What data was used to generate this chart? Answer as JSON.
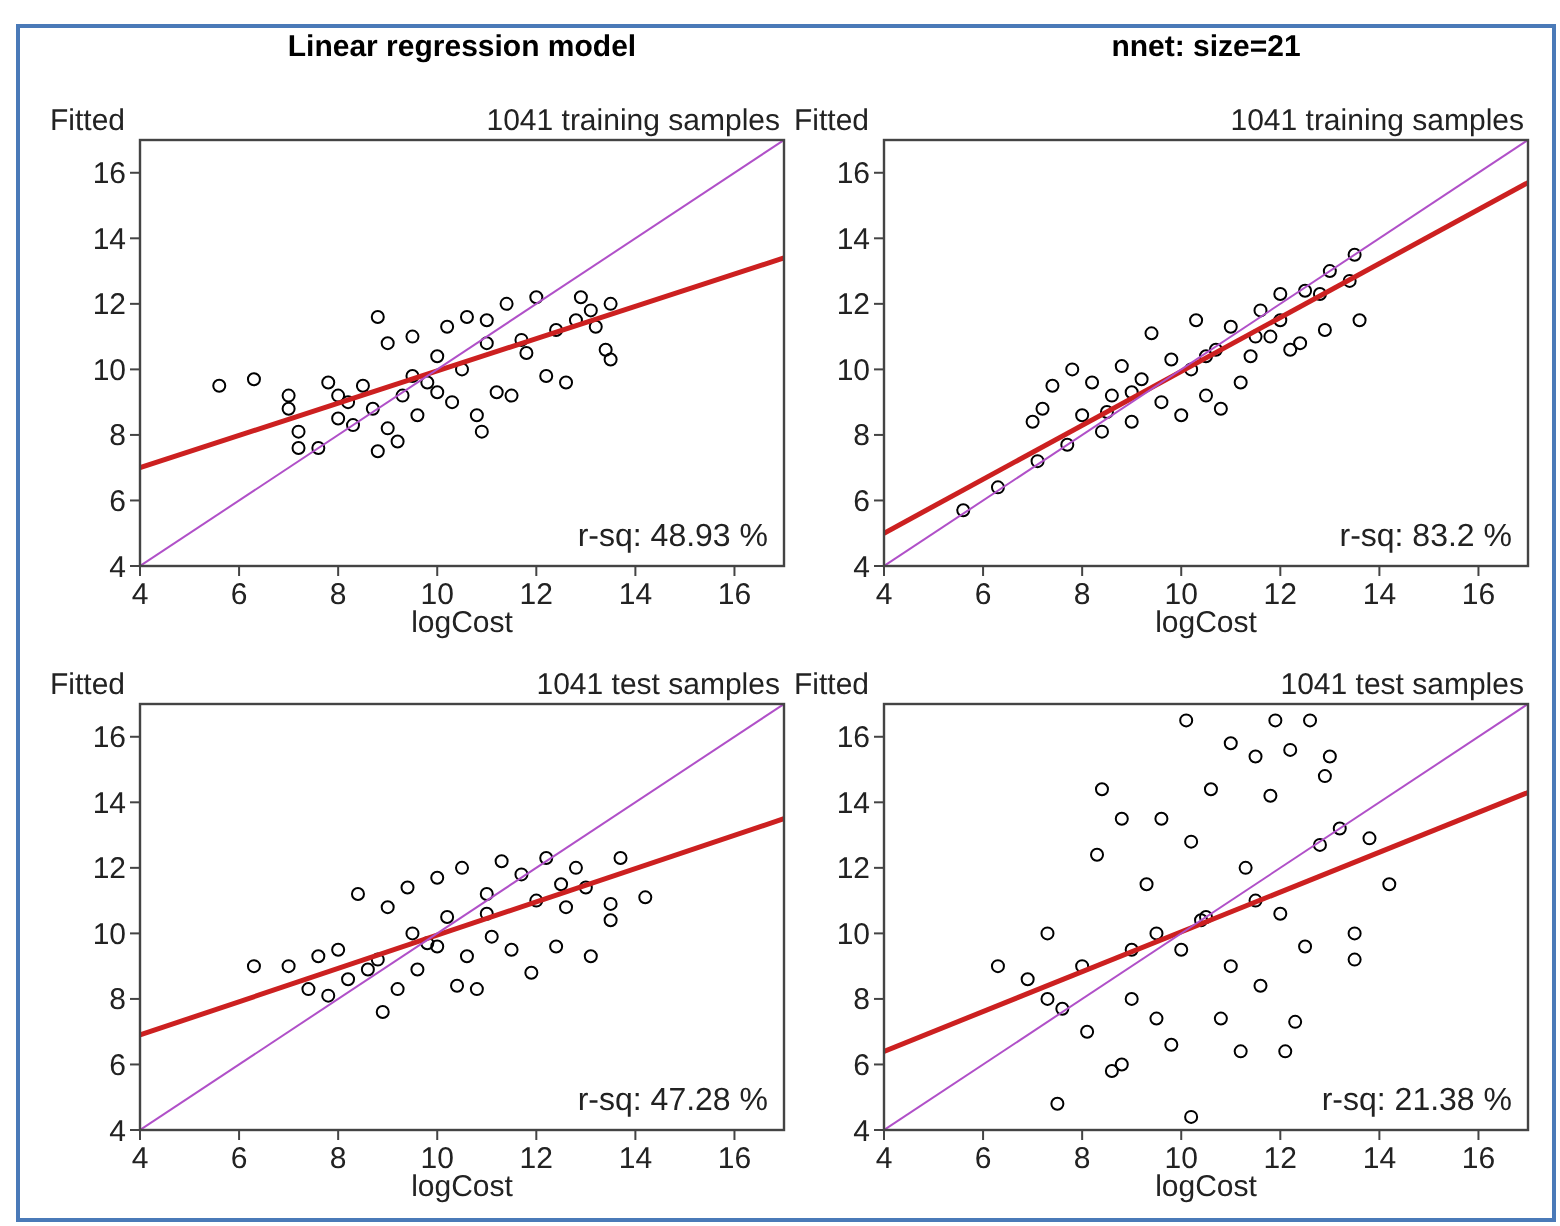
{
  "chart_data": [
    {
      "type": "scatter",
      "title": "Linear regression model",
      "subtitle": "1041 training samples",
      "ylabel": "Fitted",
      "xlabel": "logCost",
      "xlim": [
        4,
        17
      ],
      "ylim": [
        4,
        17
      ],
      "xticks": [
        4,
        6,
        8,
        10,
        12,
        14,
        16
      ],
      "yticks": [
        4,
        6,
        8,
        10,
        12,
        14,
        16
      ],
      "annotations": [
        "r-sq: 48.93 %"
      ],
      "series": [
        {
          "marker": "circle",
          "color": "#000000",
          "x": [
            5.6,
            6.3,
            7.0,
            7.0,
            7.2,
            7.2,
            7.6,
            7.8,
            8.0,
            8.2,
            8.3,
            8.5,
            8.7,
            8.8,
            8.8,
            9.0,
            9.2,
            9.0,
            9.3,
            9.5,
            9.6,
            9.8,
            10.0,
            10.2,
            10.3,
            10.5,
            10.6,
            10.8,
            10.9,
            11.0,
            11.2,
            11.4,
            11.5,
            11.7,
            12.0,
            12.2,
            12.4,
            12.6,
            12.8,
            12.9,
            13.1,
            13.4,
            13.5,
            13.5,
            13.2,
            9.5,
            10.0,
            11.0,
            8.0,
            11.8
          ],
          "values": [
            9.5,
            9.7,
            9.2,
            8.8,
            8.1,
            7.6,
            7.6,
            9.6,
            8.5,
            9.0,
            8.3,
            9.5,
            8.8,
            11.6,
            7.5,
            8.2,
            7.8,
            10.8,
            9.2,
            11.0,
            8.6,
            9.6,
            10.4,
            11.3,
            9.0,
            10.0,
            11.6,
            8.6,
            8.1,
            10.8,
            9.3,
            12.0,
            9.2,
            10.9,
            12.2,
            9.8,
            11.2,
            9.6,
            11.5,
            12.2,
            11.8,
            10.6,
            10.3,
            12.0,
            11.3,
            9.8,
            9.3,
            11.5,
            9.2,
            10.5
          ]
        },
        {
          "type": "line",
          "color": "#cc2020",
          "x": [
            4,
            17
          ],
          "values": [
            7.0,
            13.4
          ]
        },
        {
          "type": "line",
          "color": "#b050c8",
          "x": [
            4,
            17
          ],
          "values": [
            4,
            17
          ]
        }
      ]
    },
    {
      "type": "scatter",
      "title": "nnet: size=21",
      "subtitle": "1041 training samples",
      "ylabel": "Fitted",
      "xlabel": "logCost",
      "xlim": [
        4,
        17
      ],
      "ylim": [
        4,
        17
      ],
      "xticks": [
        4,
        6,
        8,
        10,
        12,
        14,
        16
      ],
      "yticks": [
        4,
        6,
        8,
        10,
        12,
        14,
        16
      ],
      "annotations": [
        "r-sq: 83.2 %"
      ],
      "series": [
        {
          "marker": "circle",
          "color": "#000000",
          "x": [
            5.6,
            6.3,
            7.1,
            7.0,
            7.2,
            7.4,
            7.7,
            7.8,
            8.0,
            8.2,
            8.4,
            8.6,
            8.8,
            9.0,
            9.2,
            9.4,
            9.6,
            9.8,
            10.0,
            10.2,
            10.3,
            10.5,
            10.7,
            10.8,
            11.0,
            11.2,
            11.4,
            11.6,
            11.8,
            12.0,
            12.2,
            12.4,
            12.5,
            12.8,
            12.9,
            13.0,
            13.4,
            13.5,
            13.6,
            12.0,
            9.0,
            10.5,
            11.5,
            8.5
          ],
          "values": [
            5.7,
            6.4,
            7.2,
            8.4,
            8.8,
            9.5,
            7.7,
            10.0,
            8.6,
            9.6,
            8.1,
            9.2,
            10.1,
            8.4,
            9.7,
            11.1,
            9.0,
            10.3,
            8.6,
            10.0,
            11.5,
            9.2,
            10.6,
            8.8,
            11.3,
            9.6,
            10.4,
            11.8,
            11.0,
            12.3,
            10.6,
            10.8,
            12.4,
            12.3,
            11.2,
            13.0,
            12.7,
            13.5,
            11.5,
            11.5,
            9.3,
            10.4,
            11.0,
            8.7
          ]
        },
        {
          "type": "line",
          "color": "#cc2020",
          "x": [
            4,
            17
          ],
          "values": [
            5.0,
            15.7
          ]
        },
        {
          "type": "line",
          "color": "#b050c8",
          "x": [
            4,
            17
          ],
          "values": [
            4,
            17
          ]
        }
      ]
    },
    {
      "type": "scatter",
      "subtitle": "1041 test samples",
      "ylabel": "Fitted",
      "xlabel": "logCost",
      "xlim": [
        4,
        17
      ],
      "ylim": [
        4,
        17
      ],
      "xticks": [
        4,
        6,
        8,
        10,
        12,
        14,
        16
      ],
      "yticks": [
        4,
        6,
        8,
        10,
        12,
        14,
        16
      ],
      "annotations": [
        "r-sq: 47.28 %"
      ],
      "series": [
        {
          "marker": "circle",
          "color": "#000000",
          "x": [
            6.3,
            7.0,
            7.4,
            7.6,
            7.8,
            8.0,
            8.2,
            8.4,
            8.6,
            8.9,
            9.0,
            9.2,
            9.4,
            9.6,
            9.8,
            10.0,
            10.2,
            10.4,
            10.5,
            10.6,
            10.8,
            11.0,
            11.1,
            11.3,
            11.5,
            11.7,
            11.9,
            12.0,
            12.2,
            12.4,
            12.6,
            12.8,
            13.0,
            13.1,
            13.5,
            13.5,
            13.7,
            14.2,
            8.8,
            9.5,
            10.0,
            11.0,
            12.5
          ],
          "values": [
            9.0,
            9.0,
            8.3,
            9.3,
            8.1,
            9.5,
            8.6,
            11.2,
            8.9,
            7.6,
            10.8,
            8.3,
            11.4,
            8.9,
            9.7,
            11.7,
            10.5,
            8.4,
            12.0,
            9.3,
            8.3,
            11.2,
            9.9,
            12.2,
            9.5,
            11.8,
            8.8,
            11.0,
            12.3,
            9.6,
            10.8,
            12.0,
            11.4,
            9.3,
            10.4,
            10.9,
            12.3,
            11.1,
            9.2,
            10.0,
            9.6,
            10.6,
            11.5
          ]
        },
        {
          "type": "line",
          "color": "#cc2020",
          "x": [
            4,
            17
          ],
          "values": [
            6.9,
            13.5
          ]
        },
        {
          "type": "line",
          "color": "#b050c8",
          "x": [
            4,
            17
          ],
          "values": [
            4,
            17
          ]
        }
      ]
    },
    {
      "type": "scatter",
      "subtitle": "1041 test samples",
      "ylabel": "Fitted",
      "xlabel": "logCost",
      "xlim": [
        4,
        17
      ],
      "ylim": [
        4,
        17
      ],
      "xticks": [
        4,
        6,
        8,
        10,
        12,
        14,
        16
      ],
      "yticks": [
        4,
        6,
        8,
        10,
        12,
        14,
        16
      ],
      "annotations": [
        "r-sq: 21.38 %"
      ],
      "series": [
        {
          "marker": "circle",
          "color": "#000000",
          "x": [
            6.3,
            6.9,
            7.3,
            7.3,
            7.5,
            7.6,
            8.0,
            8.1,
            8.3,
            8.4,
            8.6,
            8.8,
            8.8,
            9.0,
            9.3,
            9.5,
            9.6,
            9.8,
            10.0,
            10.1,
            10.2,
            10.2,
            10.4,
            10.6,
            10.8,
            11.0,
            11.0,
            11.2,
            11.3,
            11.5,
            11.6,
            11.8,
            11.9,
            12.0,
            12.1,
            12.2,
            12.3,
            12.5,
            12.6,
            12.8,
            13.0,
            12.9,
            13.2,
            13.5,
            13.5,
            13.8,
            14.2,
            9.5,
            10.5,
            9.0,
            11.5
          ],
          "values": [
            9.0,
            8.6,
            10.0,
            8.0,
            4.8,
            7.7,
            9.0,
            7.0,
            12.4,
            14.4,
            5.8,
            6.0,
            13.5,
            8.0,
            11.5,
            7.4,
            13.5,
            6.6,
            9.5,
            16.5,
            4.4,
            12.8,
            10.4,
            14.4,
            7.4,
            15.8,
            9.0,
            6.4,
            12.0,
            15.4,
            8.4,
            14.2,
            16.5,
            10.6,
            6.4,
            15.6,
            7.3,
            9.6,
            16.5,
            12.7,
            15.4,
            14.8,
            13.2,
            10.0,
            9.2,
            12.9,
            11.5,
            10.0,
            10.5,
            9.5,
            11.0
          ]
        },
        {
          "type": "line",
          "color": "#cc2020",
          "x": [
            4,
            17
          ],
          "values": [
            6.4,
            14.3
          ]
        },
        {
          "type": "line",
          "color": "#b050c8",
          "x": [
            4,
            17
          ],
          "values": [
            4,
            17
          ]
        }
      ]
    }
  ]
}
